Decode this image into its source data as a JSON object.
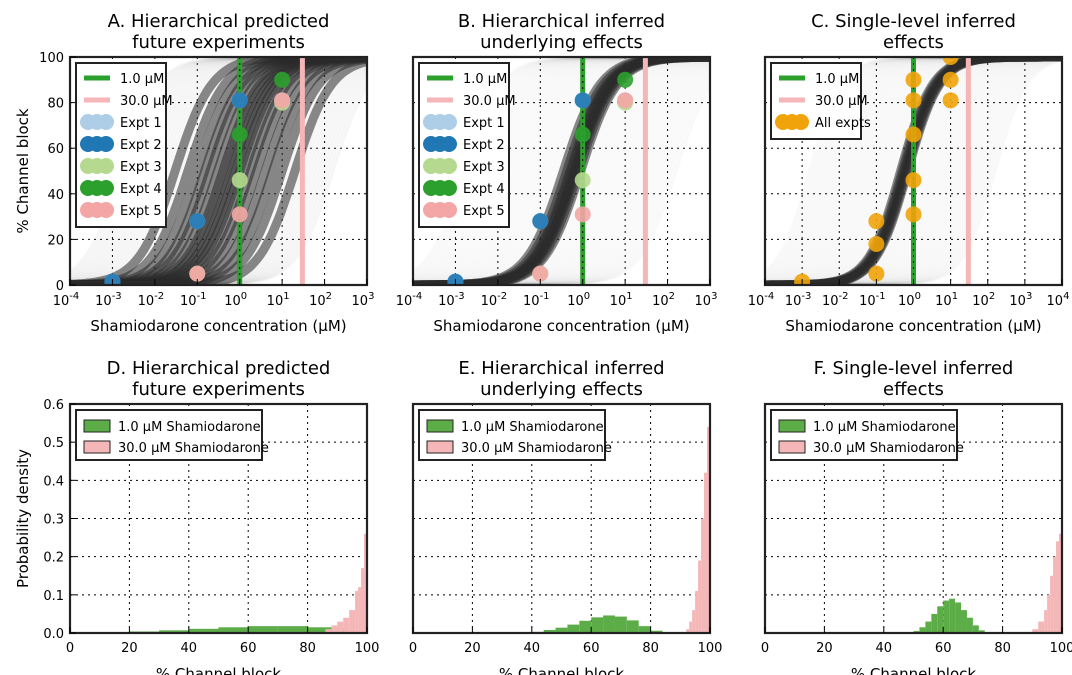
{
  "figure": {
    "colors": {
      "c1": "#2ca02c",
      "c30": "#f4b6b6",
      "curves": "#2a2a2a",
      "expt1": "#aecde6",
      "expt2": "#1f77b4",
      "expt3": "#b5d98f",
      "expt4": "#2ca02c",
      "expt5": "#f4a6a6",
      "all": "#f0a30a",
      "hist1": "#5cad48",
      "hist30": "#f4b6b6"
    }
  },
  "panels": [
    {
      "id": "A",
      "title_line1": "A. Hierarchical predicted",
      "title_line2": "future experiments",
      "xlabel": "Shamiodarone concentration (μM)",
      "ylabel": "% Channel block",
      "xticks_exp": [
        "-4",
        "-3",
        "-2",
        "-1",
        "0",
        "1",
        "2",
        "3"
      ],
      "yticks": [
        "0",
        "20",
        "40",
        "60",
        "80",
        "100"
      ],
      "legend": [
        {
          "label": "1.0 μM",
          "kind": "line",
          "color": "#2ca02c"
        },
        {
          "label": "30.0 μM",
          "kind": "line",
          "color": "#f4b6b6"
        },
        {
          "label": "Expt 1",
          "kind": "dot",
          "color": "#aecde6"
        },
        {
          "label": "Expt 2",
          "kind": "dot",
          "color": "#1f77b4"
        },
        {
          "label": "Expt 3",
          "kind": "dot",
          "color": "#b5d98f"
        },
        {
          "label": "Expt 4",
          "kind": "dot",
          "color": "#2ca02c"
        },
        {
          "label": "Expt 5",
          "kind": "dot",
          "color": "#f4a6a6"
        }
      ]
    },
    {
      "id": "B",
      "title_line1": "B. Hierarchical inferred",
      "title_line2": "underlying effects",
      "xlabel": "Shamiodarone concentration (μM)",
      "xticks_exp": [
        "-4",
        "-3",
        "-2",
        "-1",
        "0",
        "1",
        "2",
        "3"
      ],
      "legend": [
        {
          "label": "1.0 μM",
          "kind": "line",
          "color": "#2ca02c"
        },
        {
          "label": "30.0 μM",
          "kind": "line",
          "color": "#f4b6b6"
        },
        {
          "label": "Expt 1",
          "kind": "dot",
          "color": "#aecde6"
        },
        {
          "label": "Expt 2",
          "kind": "dot",
          "color": "#1f77b4"
        },
        {
          "label": "Expt 3",
          "kind": "dot",
          "color": "#b5d98f"
        },
        {
          "label": "Expt 4",
          "kind": "dot",
          "color": "#2ca02c"
        },
        {
          "label": "Expt 5",
          "kind": "dot",
          "color": "#f4a6a6"
        }
      ]
    },
    {
      "id": "C",
      "title_line1": "C. Single-level inferred",
      "title_line2": "effects",
      "xlabel": "Shamiodarone concentration (μM)",
      "xticks_exp": [
        "-4",
        "-3",
        "-2",
        "-1",
        "0",
        "1",
        "2",
        "3",
        "4"
      ],
      "legend": [
        {
          "label": "1.0 μM",
          "kind": "line",
          "color": "#2ca02c"
        },
        {
          "label": "30.0 μM",
          "kind": "line",
          "color": "#f4b6b6"
        },
        {
          "label": "All expts",
          "kind": "dot",
          "color": "#f0a30a"
        }
      ]
    },
    {
      "id": "D",
      "title_line1": "D. Hierarchical predicted",
      "title_line2": "future experiments",
      "xlabel": "% Channel block",
      "ylabel": "Probability density",
      "xticks": [
        "0",
        "20",
        "40",
        "60",
        "80",
        "100"
      ],
      "yticks": [
        "0.0",
        "0.1",
        "0.2",
        "0.3",
        "0.4",
        "0.5",
        "0.6"
      ],
      "legend": [
        {
          "label": "1.0 μM Shamiodarone",
          "kind": "box",
          "color": "#5cad48"
        },
        {
          "label": "30.0 μM Shamiodarone",
          "kind": "box",
          "color": "#f4b6b6"
        }
      ]
    },
    {
      "id": "E",
      "title_line1": "E. Hierarchical inferred",
      "title_line2": "underlying effects",
      "xlabel": "% Channel block",
      "xticks": [
        "0",
        "20",
        "40",
        "60",
        "80",
        "100"
      ],
      "legend": [
        {
          "label": "1.0 μM Shamiodarone",
          "kind": "box",
          "color": "#5cad48"
        },
        {
          "label": "30.0 μM Shamiodarone",
          "kind": "box",
          "color": "#f4b6b6"
        }
      ]
    },
    {
      "id": "F",
      "title_line1": "F. Single-level inferred",
      "title_line2": "effects",
      "xlabel": "% Channel block",
      "xticks": [
        "0",
        "20",
        "40",
        "60",
        "80",
        "100"
      ],
      "legend": [
        {
          "label": "1.0 μM Shamiodarone",
          "kind": "box",
          "color": "#5cad48"
        },
        {
          "label": "30.0 μM Shamiodarone",
          "kind": "box",
          "color": "#f4b6b6"
        }
      ]
    }
  ],
  "chart_data": [
    {
      "type": "line",
      "panel": "A",
      "x_scale": "log",
      "xlim": [
        0.0001,
        1000
      ],
      "ylim": [
        0,
        100
      ],
      "grid": true,
      "legend_position": "top-left",
      "vlines": [
        {
          "x": 1.0,
          "name": "1.0 μM"
        },
        {
          "x": 30.0,
          "name": "30.0 μM"
        }
      ],
      "curve_ic50_samples": [
        0.03,
        0.06,
        0.1,
        0.15,
        0.2,
        0.3,
        0.4,
        0.5,
        0.65,
        0.8,
        1.0,
        1.3,
        1.8,
        2.5,
        4,
        6,
        10,
        20
      ],
      "hill_coefficient": 1.0,
      "points": [
        {
          "name": "Expt 1",
          "x": [
            0.001,
            0.1,
            1.0,
            10.0
          ],
          "y": [
            1.5,
            28,
            81,
            81
          ]
        },
        {
          "name": "Expt 2",
          "x": [
            0.001,
            0.1,
            1.0
          ],
          "y": [
            1.5,
            28,
            81
          ]
        },
        {
          "name": "Expt 3",
          "x": [
            0.1,
            1.0,
            10.0
          ],
          "y": [
            5,
            46,
            80
          ]
        },
        {
          "name": "Expt 4",
          "x": [
            1.0,
            10.0
          ],
          "y": [
            66,
            90
          ]
        },
        {
          "name": "Expt 5",
          "x": [
            0.1,
            1.0,
            10.0
          ],
          "y": [
            5,
            31,
            81
          ]
        }
      ]
    },
    {
      "type": "line",
      "panel": "B",
      "x_scale": "log",
      "xlim": [
        0.0001,
        1000
      ],
      "ylim": [
        0,
        100
      ],
      "grid": true,
      "legend_position": "top-left",
      "vlines": [
        {
          "x": 1.0,
          "name": "1.0 μM"
        },
        {
          "x": 30.0,
          "name": "30.0 μM"
        }
      ],
      "curve_ic50_samples": [
        0.35,
        0.42,
        0.5,
        0.55,
        0.6,
        0.65,
        0.7,
        0.8,
        0.9
      ],
      "hill_coefficient": 1.0,
      "points": [
        {
          "name": "Expt 1",
          "x": [
            0.001,
            0.1,
            1.0,
            10.0
          ],
          "y": [
            1.5,
            28,
            81,
            81
          ]
        },
        {
          "name": "Expt 2",
          "x": [
            0.001,
            0.1,
            1.0
          ],
          "y": [
            1.5,
            28,
            81
          ]
        },
        {
          "name": "Expt 3",
          "x": [
            0.1,
            1.0,
            10.0
          ],
          "y": [
            5,
            46,
            80
          ]
        },
        {
          "name": "Expt 4",
          "x": [
            1.0,
            10.0
          ],
          "y": [
            66,
            90
          ]
        },
        {
          "name": "Expt 5",
          "x": [
            0.1,
            1.0,
            10.0
          ],
          "y": [
            5,
            31,
            81
          ]
        }
      ]
    },
    {
      "type": "line",
      "panel": "C",
      "x_scale": "log",
      "xlim": [
        0.0001,
        10000
      ],
      "ylim": [
        0,
        100
      ],
      "grid": true,
      "legend_position": "top-left",
      "vlines": [
        {
          "x": 1.0,
          "name": "1.0 μM"
        },
        {
          "x": 30.0,
          "name": "30.0 μM"
        }
      ],
      "curve_ic50_samples": [
        0.45,
        0.5,
        0.55,
        0.6,
        0.65,
        0.7
      ],
      "hill_coefficient": 1.0,
      "points": [
        {
          "name": "All expts",
          "x": [
            0.001,
            0.1,
            0.1,
            0.1,
            1.0,
            1.0,
            1.0,
            1.0,
            1.0,
            10.0,
            10.0,
            10.0
          ],
          "y": [
            1.5,
            5,
            28,
            18,
            31,
            46,
            66,
            81,
            90,
            81,
            90,
            100
          ]
        }
      ]
    },
    {
      "type": "bar",
      "panel": "D",
      "xlim": [
        0,
        100
      ],
      "ylim": [
        0,
        0.6
      ],
      "grid": true,
      "legend_position": "top-left",
      "series": [
        {
          "name": "1.0 μM Shamiodarone",
          "bins": [
            [
              20,
              30,
              0.004
            ],
            [
              30,
              40,
              0.007
            ],
            [
              40,
              50,
              0.011
            ],
            [
              50,
              60,
              0.015
            ],
            [
              60,
              70,
              0.018
            ],
            [
              70,
              80,
              0.018
            ],
            [
              80,
              90,
              0.015
            ],
            [
              90,
              94,
              0.012
            ]
          ]
        },
        {
          "name": "30.0 μM Shamiodarone",
          "bins": [
            [
              86,
              88,
              0.01
            ],
            [
              88,
              90,
              0.02
            ],
            [
              90,
              92,
              0.03
            ],
            [
              92,
              94,
              0.04
            ],
            [
              94,
              96,
              0.06
            ],
            [
              96,
              97,
              0.11
            ],
            [
              97,
              98,
              0.12
            ],
            [
              98,
              99,
              0.17
            ],
            [
              99,
              100,
              0.26
            ]
          ]
        }
      ]
    },
    {
      "type": "bar",
      "panel": "E",
      "xlim": [
        0,
        100
      ],
      "ylim": [
        0,
        0.6
      ],
      "grid": true,
      "legend_position": "top-left",
      "series": [
        {
          "name": "1.0 μM Shamiodarone",
          "bins": [
            [
              40,
              44,
              0.003
            ],
            [
              44,
              48,
              0.008
            ],
            [
              48,
              52,
              0.014
            ],
            [
              52,
              56,
              0.022
            ],
            [
              56,
              60,
              0.032
            ],
            [
              60,
              64,
              0.041
            ],
            [
              64,
              68,
              0.046
            ],
            [
              68,
              72,
              0.043
            ],
            [
              72,
              76,
              0.033
            ],
            [
              76,
              80,
              0.018
            ],
            [
              80,
              84,
              0.006
            ]
          ]
        },
        {
          "name": "30.0 μM Shamiodarone",
          "bins": [
            [
              92,
              93,
              0.01
            ],
            [
              93,
              94,
              0.03
            ],
            [
              94,
              95,
              0.06
            ],
            [
              95,
              96,
              0.11
            ],
            [
              96,
              97,
              0.19
            ],
            [
              97,
              98,
              0.3
            ],
            [
              98,
              99,
              0.42
            ],
            [
              99,
              100,
              0.54
            ]
          ]
        }
      ]
    },
    {
      "type": "bar",
      "panel": "F",
      "xlim": [
        0,
        100
      ],
      "ylim": [
        0,
        0.6
      ],
      "grid": true,
      "legend_position": "top-left",
      "series": [
        {
          "name": "1.0 μM Shamiodarone",
          "bins": [
            [
              50,
              52,
              0.005
            ],
            [
              52,
              54,
              0.015
            ],
            [
              54,
              56,
              0.03
            ],
            [
              56,
              58,
              0.05
            ],
            [
              58,
              60,
              0.07
            ],
            [
              60,
              62,
              0.085
            ],
            [
              62,
              64,
              0.09
            ],
            [
              64,
              66,
              0.08
            ],
            [
              66,
              68,
              0.06
            ],
            [
              68,
              70,
              0.04
            ],
            [
              70,
              72,
              0.02
            ],
            [
              72,
              74,
              0.007
            ]
          ]
        },
        {
          "name": "30.0 μM Shamiodarone",
          "bins": [
            [
              90,
              92,
              0.01
            ],
            [
              92,
              94,
              0.03
            ],
            [
              94,
              95,
              0.06
            ],
            [
              95,
              96,
              0.1
            ],
            [
              96,
              97,
              0.15
            ],
            [
              97,
              98,
              0.2
            ],
            [
              98,
              99,
              0.24
            ],
            [
              99,
              100,
              0.26
            ]
          ]
        }
      ]
    }
  ]
}
